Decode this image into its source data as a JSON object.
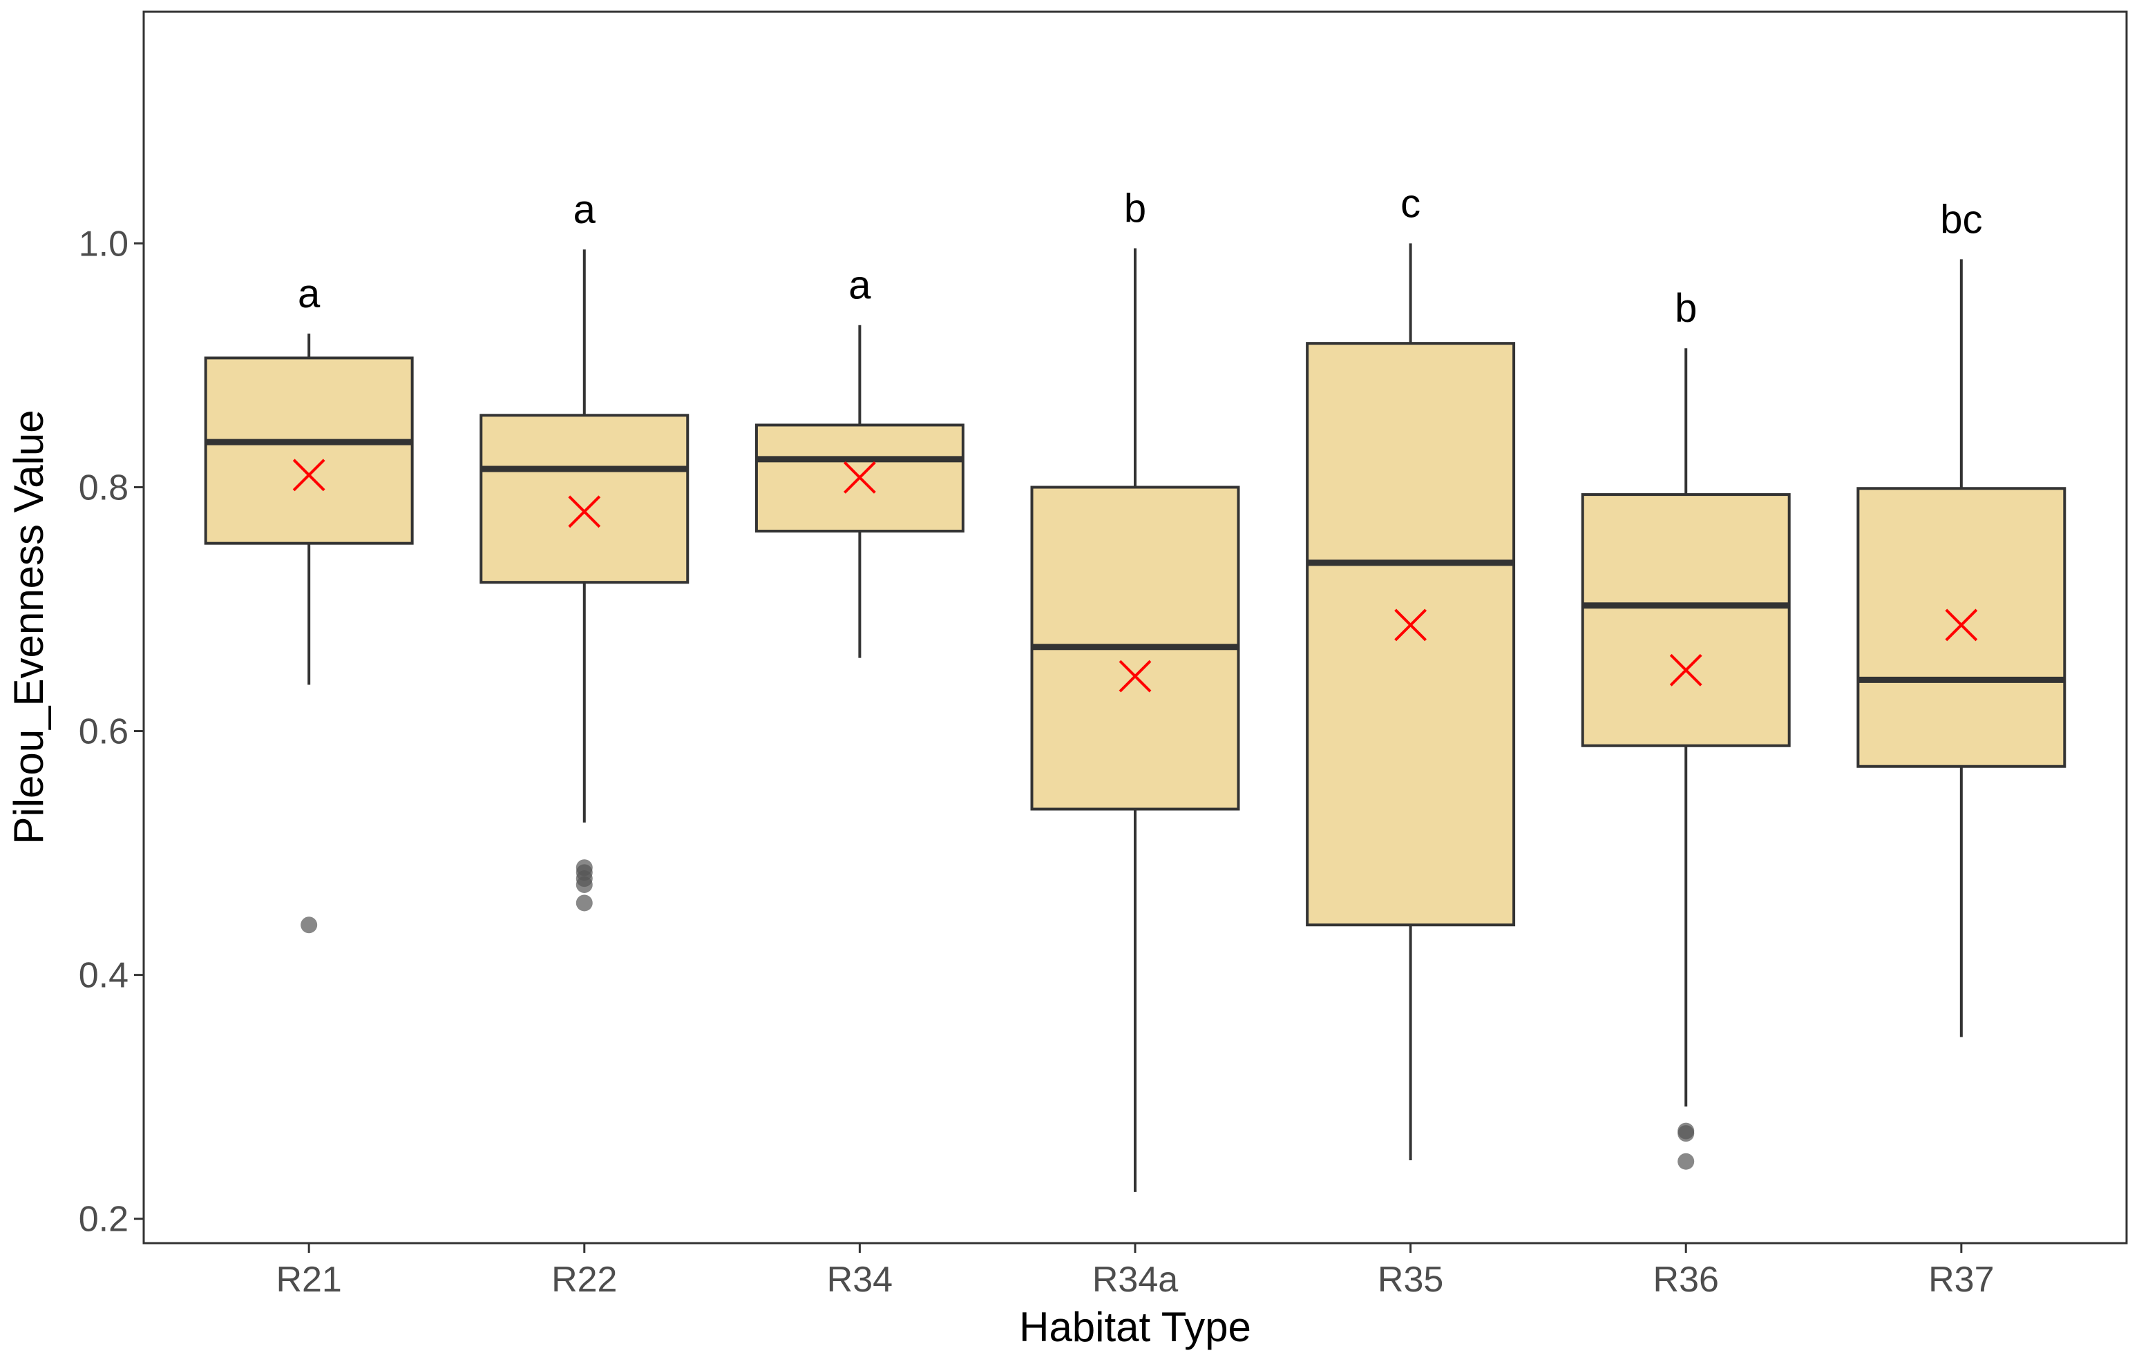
{
  "chart_data": {
    "type": "boxplot",
    "title": "",
    "xlabel": "Habitat Type",
    "ylabel": "Pileou_Evenness Value",
    "ylim": [
      0.18,
      1.19
    ],
    "yticks": [
      0.2,
      0.4,
      0.6,
      0.8,
      1.0
    ],
    "ytick_labels": [
      "0.2",
      "0.4",
      "0.6",
      "0.8",
      "1.0"
    ],
    "grid": false,
    "categories": [
      "R21",
      "R22",
      "R34",
      "R34a",
      "R35",
      "R36",
      "R37"
    ],
    "boxes": [
      {
        "category": "R21",
        "whisker_low": 0.638,
        "q1": 0.754,
        "median": 0.837,
        "q3": 0.906,
        "whisker_high": 0.926,
        "mean": 0.81,
        "outliers": [
          0.441
        ],
        "group_letter": "a"
      },
      {
        "category": "R22",
        "whisker_low": 0.525,
        "q1": 0.722,
        "median": 0.815,
        "q3": 0.859,
        "whisker_high": 0.995,
        "mean": 0.78,
        "outliers": [
          0.488,
          0.484,
          0.479,
          0.474,
          0.459
        ],
        "group_letter": "a"
      },
      {
        "category": "R34",
        "whisker_low": 0.66,
        "q1": 0.764,
        "median": 0.823,
        "q3": 0.851,
        "whisker_high": 0.933,
        "mean": 0.808,
        "outliers": [],
        "group_letter": "a"
      },
      {
        "category": "R34a",
        "whisker_low": 0.222,
        "q1": 0.536,
        "median": 0.669,
        "q3": 0.8,
        "whisker_high": 0.996,
        "mean": 0.645,
        "outliers": [],
        "group_letter": "b"
      },
      {
        "category": "R35",
        "whisker_low": 0.248,
        "q1": 0.441,
        "median": 0.738,
        "q3": 0.918,
        "whisker_high": 1.0,
        "mean": 0.687,
        "outliers": [],
        "group_letter": "c"
      },
      {
        "category": "R36",
        "whisker_low": 0.292,
        "q1": 0.588,
        "median": 0.703,
        "q3": 0.794,
        "whisker_high": 0.914,
        "mean": 0.65,
        "outliers": [
          0.272,
          0.27,
          0.247
        ],
        "group_letter": "b"
      },
      {
        "category": "R37",
        "whisker_low": 0.349,
        "q1": 0.571,
        "median": 0.642,
        "q3": 0.799,
        "whisker_high": 0.987,
        "mean": 0.687,
        "outliers": [],
        "group_letter": "bc"
      }
    ],
    "colors": {
      "box_fill": "#f0daa1",
      "box_stroke": "#333333",
      "mean_marker": "#ff0000",
      "outlier": "#555555",
      "axis": "#333333"
    }
  }
}
